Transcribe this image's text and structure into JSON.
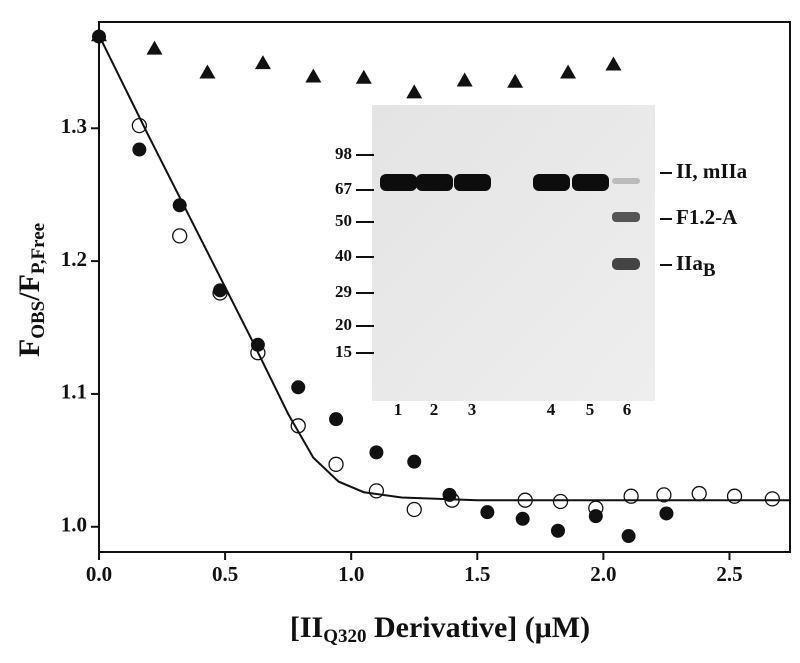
{
  "chart_data": {
    "type": "scatter",
    "xlabel_parts": [
      "[II",
      "Q320",
      " Derivative] (μM)"
    ],
    "ylabel_parts": [
      "F",
      "OBS",
      "/F",
      "P,Free"
    ],
    "xlim": [
      0,
      2.74
    ],
    "ylim": [
      0.981,
      1.38
    ],
    "xticks": [
      {
        "value": 0,
        "label": "0.0"
      },
      0.5,
      {
        "value": 1,
        "label": "1.0"
      },
      1.5,
      {
        "value": 2,
        "label": "2.0"
      },
      2.5
    ],
    "yticks": [
      {
        "value": 1,
        "label": "1.0"
      },
      1.1,
      1.2,
      1.3
    ],
    "series": [
      {
        "marker": "triangle",
        "color": "#111111",
        "x": [
          0,
          0.22,
          0.43,
          0.65,
          0.85,
          1.05,
          1.25,
          1.45,
          1.65,
          1.86,
          2.04
        ],
        "values": [
          1.37,
          1.36,
          1.342,
          1.349,
          1.339,
          1.338,
          1.327,
          1.336,
          1.335,
          1.342,
          1.348
        ]
      },
      {
        "marker": "filled-circle",
        "color": "#111111",
        "x": [
          0,
          0.16,
          0.32,
          0.48,
          0.63,
          0.79,
          0.94,
          1.1,
          1.25,
          1.39,
          1.54,
          1.68,
          1.82,
          1.97,
          2.1,
          2.25
        ],
        "values": [
          1.369,
          1.284,
          1.242,
          1.178,
          1.137,
          1.105,
          1.081,
          1.056,
          1.049,
          1.024,
          1.011,
          1.006,
          0.997,
          1.008,
          0.993,
          1.01
        ]
      },
      {
        "marker": "open-circle",
        "color": "#111111",
        "x": [
          0.16,
          0.32,
          0.48,
          0.63,
          0.79,
          0.94,
          1.1,
          1.25,
          1.4,
          1.69,
          1.83,
          1.97,
          2.11,
          2.24,
          2.38,
          2.52,
          2.67
        ],
        "values": [
          1.302,
          1.219,
          1.176,
          1.131,
          1.076,
          1.047,
          1.027,
          1.013,
          1.02,
          1.02,
          1.019,
          1.014,
          1.023,
          1.024,
          1.025,
          1.023,
          1.021
        ]
      },
      {
        "marker": "line",
        "color": "#111111",
        "x": [
          0,
          0.2,
          0.4,
          0.6,
          0.75,
          0.85,
          0.95,
          1.05,
          1.2,
          1.5,
          2.0,
          2.74
        ],
        "values": [
          1.37,
          1.293,
          1.218,
          1.143,
          1.085,
          1.052,
          1.034,
          1.026,
          1.022,
          1.02,
          1.02,
          1.02
        ]
      }
    ],
    "inset": {
      "markers": [
        "98",
        "67",
        "50",
        "40",
        "29",
        "20",
        "15"
      ],
      "lanes": [
        "1",
        "2",
        "3",
        "4",
        "5",
        "6"
      ],
      "band_labels": [
        [
          "II, mIIa"
        ],
        [
          "F1.2-A"
        ],
        [
          "IIa",
          "B"
        ]
      ]
    }
  }
}
